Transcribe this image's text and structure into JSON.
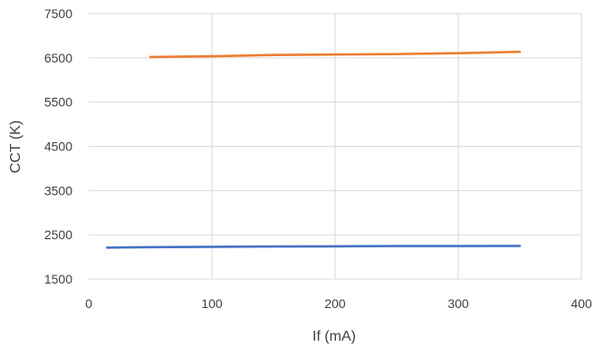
{
  "chart_data": {
    "type": "line",
    "title": "",
    "xlabel": "If (mA)",
    "ylabel": "CCT (K)",
    "xlim": [
      0,
      400
    ],
    "ylim": [
      1500,
      7500
    ],
    "xticks": [
      0,
      100,
      200,
      300,
      400
    ],
    "yticks": [
      1500,
      2500,
      3500,
      4500,
      5500,
      6500,
      7500
    ],
    "grid": true,
    "legend": "none",
    "series": [
      {
        "color": "#ED7D31",
        "x": [
          50,
          100,
          150,
          200,
          250,
          300,
          350
        ],
        "y": [
          6520,
          6535,
          6565,
          6575,
          6585,
          6605,
          6635
        ]
      },
      {
        "color": "#4472C4",
        "x": [
          15,
          50,
          100,
          150,
          200,
          250,
          300,
          350
        ],
        "y": [
          2210,
          2220,
          2230,
          2235,
          2240,
          2245,
          2245,
          2250
        ]
      }
    ]
  }
}
